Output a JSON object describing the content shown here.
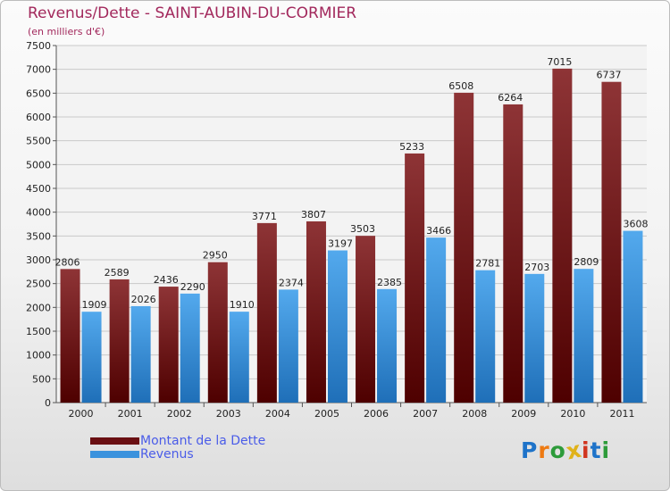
{
  "header": {
    "title": "Revenus/Dette - SAINT-AUBIN-DU-CORMIER",
    "subtitle": "(en milliers d'€)"
  },
  "chart_data": {
    "type": "bar",
    "title": "Revenus/Dette - SAINT-AUBIN-DU-CORMIER",
    "ylabel": "(en milliers d'€)",
    "xlabel": "",
    "ylim": [
      0,
      7500
    ],
    "ytick_step": 500,
    "grid": true,
    "categories": [
      "2000",
      "2001",
      "2002",
      "2003",
      "2004",
      "2005",
      "2006",
      "2007",
      "2008",
      "2009",
      "2010",
      "2011"
    ],
    "series": [
      {
        "name": "Montant de la Dette",
        "color": "#7a1f22",
        "values": [
          2806,
          2589,
          2436,
          2950,
          3771,
          3807,
          3503,
          5233,
          6508,
          6264,
          7015,
          6737
        ]
      },
      {
        "name": "Revenus",
        "color": "#3a92dd",
        "values": [
          1909,
          2026,
          2290,
          1910,
          2374,
          3197,
          2385,
          3466,
          2781,
          2703,
          2809,
          3608
        ]
      }
    ],
    "legend_position": "bottom-left"
  },
  "legend": {
    "items": [
      {
        "label": "Montant de la Dette",
        "color": "#6a0f12"
      },
      {
        "label": "Revenus",
        "color": "#3a92dd"
      }
    ]
  },
  "logo": {
    "letters": [
      {
        "ch": "P",
        "color": "#1e73c9"
      },
      {
        "ch": "r",
        "color": "#ee7a12"
      },
      {
        "ch": "o",
        "color": "#2d9b3a"
      },
      {
        "ch": "x",
        "color": "#e0b21a"
      },
      {
        "ch": "i",
        "color": "#d0341e"
      },
      {
        "ch": "t",
        "color": "#1e73c9"
      },
      {
        "ch": "i",
        "color": "#2d9b3a"
      }
    ]
  }
}
